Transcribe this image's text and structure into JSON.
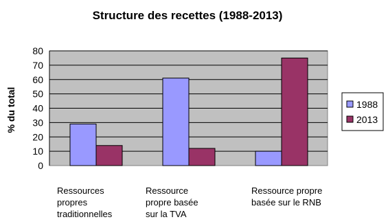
{
  "chart_data": {
    "type": "bar",
    "title": "Structure des recettes (1988-2013)",
    "xlabel": "",
    "ylabel": "% du total",
    "ylim": [
      0,
      80
    ],
    "yticks": [
      0,
      10,
      20,
      30,
      40,
      50,
      60,
      70,
      80
    ],
    "grid": true,
    "legend_position": "right",
    "categories": [
      [
        "Ressources",
        "propres",
        "traditionnelles"
      ],
      [
        "Ressource",
        "propre basée",
        "sur la TVA"
      ],
      [
        "Ressource propre",
        "basée sur le RNB"
      ]
    ],
    "series": [
      {
        "name": "1988",
        "color": "#9999ff",
        "values": [
          29,
          61,
          10
        ]
      },
      {
        "name": "2013",
        "color": "#993366",
        "values": [
          14,
          12,
          75
        ]
      }
    ],
    "plot_background": "#c0c0c0"
  }
}
